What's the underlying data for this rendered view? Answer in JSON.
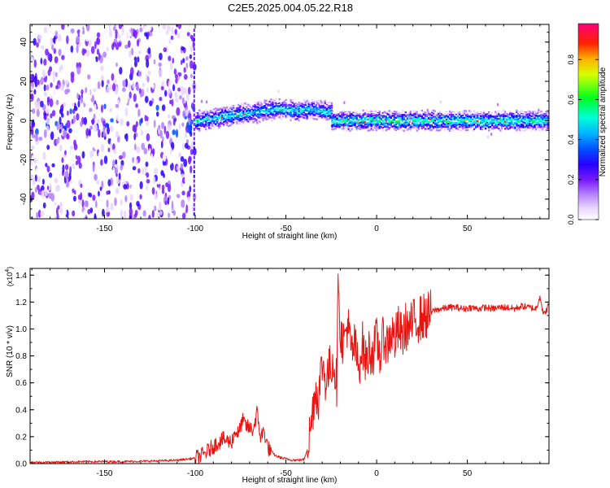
{
  "figure": {
    "title": "C2E5.2025.004.05.22.R18"
  },
  "chart_data": [
    {
      "type": "heatmap",
      "xlabel": "Height of straight line (km)",
      "ylabel": "Frequency (Hz)",
      "xlim": [
        -191,
        95
      ],
      "ylim": [
        -50,
        49
      ],
      "xticks": [
        -150,
        -100,
        -50,
        0,
        50
      ],
      "yticks": [
        -40,
        -20,
        0,
        20,
        40
      ],
      "xticklabels": [
        "-150",
        "-100",
        "-50",
        "0",
        "50"
      ],
      "yticklabels": [
        "-40",
        "-20",
        "0",
        "20",
        "40"
      ],
      "colorbar": {
        "label": "Normalized spectral amplitude",
        "range": [
          0,
          0.98
        ],
        "ticks": [
          0.0,
          0.2,
          0.4,
          0.6,
          0.8
        ],
        "ticklabels": [
          "0.0",
          "0.2",
          "0.4",
          "0.6",
          "0.8"
        ],
        "colormap": [
          "#ffffff",
          "#d9b3ff",
          "#8a2be2",
          "#1a00ff",
          "#00b0ff",
          "#00ffd0",
          "#00ff00",
          "#ffff00",
          "#ff8000",
          "#ff0000",
          "#ff0080"
        ]
      },
      "regions": [
        {
          "name": "noise",
          "x": [
            -191,
            -100
          ],
          "frequency_spread": [
            -50,
            49
          ],
          "amplitude": 0.15
        },
        {
          "name": "line-segment-1",
          "x": [
            -100,
            -25
          ],
          "center_frequency": [
            0,
            2,
            4,
            6,
            5,
            6,
            4
          ],
          "center_x": [
            -98,
            -85,
            -70,
            -55,
            -45,
            -35,
            -25
          ],
          "amplitude": 0.55
        },
        {
          "name": "line-segment-2",
          "x": [
            -25,
            95
          ],
          "center_frequency": [
            0,
            0
          ],
          "amplitude": 0.6
        }
      ],
      "grid": false,
      "legend": "none"
    },
    {
      "type": "line",
      "xlabel": "Height of straight line (km)",
      "ylabel": "SNR (10 * v/v)",
      "ylabel_multiplier": "(x10^4)",
      "xlim": [
        -191,
        95
      ],
      "ylim": [
        0,
        1.45
      ],
      "xticks": [
        -150,
        -100,
        -50,
        0,
        50
      ],
      "yticks": [
        0.0,
        0.2,
        0.4,
        0.6,
        0.8,
        1.0,
        1.2,
        1.4
      ],
      "xticklabels": [
        "-150",
        "-100",
        "-50",
        "0",
        "50"
      ],
      "yticklabels": [
        "0.0",
        "0.2",
        "0.4",
        "0.6",
        "0.8",
        "1.0",
        "1.2",
        "1.4"
      ],
      "series": [
        {
          "color": "#e8140f",
          "x": [
            -191,
            -180,
            -160,
            -140,
            -120,
            -110,
            -100,
            -95,
            -90,
            -85,
            -80,
            -78,
            -76,
            -74,
            -72,
            -70,
            -68,
            -66,
            -64,
            -62,
            -60,
            -56,
            -52,
            -48,
            -44,
            -40,
            -38,
            -36,
            -34,
            -32,
            -30,
            -28,
            -26,
            -24,
            -22,
            -21,
            -20,
            -18,
            -16,
            -14,
            -12,
            -10,
            -8,
            -6,
            -4,
            -2,
            0,
            2,
            4,
            6,
            8,
            10,
            12,
            14,
            16,
            18,
            20,
            24,
            28,
            32,
            36,
            40,
            44,
            48,
            52,
            56,
            60,
            64,
            68,
            72,
            76,
            80,
            84,
            88,
            90,
            92,
            95
          ],
          "y": [
            0.01,
            0.01,
            0.015,
            0.015,
            0.02,
            0.025,
            0.04,
            0.07,
            0.13,
            0.18,
            0.16,
            0.24,
            0.22,
            0.32,
            0.28,
            0.26,
            0.25,
            0.38,
            0.2,
            0.24,
            0.12,
            0.06,
            0.04,
            0.03,
            0.025,
            0.03,
            0.12,
            0.3,
            0.55,
            0.5,
            0.75,
            0.62,
            0.7,
            0.78,
            0.6,
            1.45,
            0.95,
            0.9,
            1.05,
            0.82,
            0.88,
            0.7,
            0.9,
            0.75,
            0.85,
            0.82,
            0.92,
            0.8,
            0.95,
            0.88,
            0.98,
            0.92,
            1.0,
            0.94,
            1.02,
            1.0,
            1.05,
            1.08,
            1.1,
            1.14,
            1.15,
            1.16,
            1.16,
            1.15,
            1.16,
            1.15,
            1.16,
            1.15,
            1.16,
            1.16,
            1.15,
            1.17,
            1.16,
            1.15,
            1.25,
            1.1,
            1.18
          ]
        }
      ],
      "grid": false,
      "legend": "none"
    }
  ]
}
